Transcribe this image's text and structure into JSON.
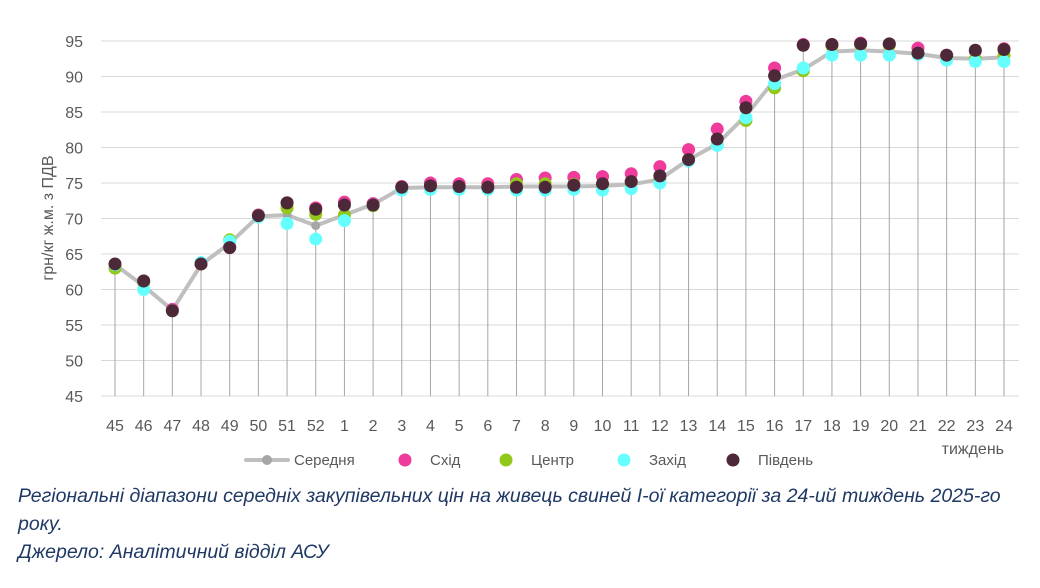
{
  "chart_data": {
    "type": "line",
    "ylabel": "грн/кг ж.м. з ПДВ",
    "xlabel": "тиждень",
    "ylim": [
      45,
      95
    ],
    "yticks": [
      45,
      50,
      55,
      60,
      65,
      70,
      75,
      80,
      85,
      90,
      95
    ],
    "grid": true,
    "legend": "bottom",
    "categories": [
      "45",
      "46",
      "47",
      "48",
      "49",
      "50",
      "51",
      "52",
      "1",
      "2",
      "3",
      "4",
      "5",
      "6",
      "7",
      "8",
      "9",
      "10",
      "11",
      "12",
      "13",
      "14",
      "15",
      "16",
      "17",
      "18",
      "19",
      "20",
      "21",
      "22",
      "23",
      "24"
    ],
    "series": [
      {
        "name": "Середня",
        "color": "#bfbfbf",
        "marker": "line",
        "values": [
          63.5,
          60.5,
          57.1,
          63.5,
          66.5,
          70.3,
          70.5,
          69.0,
          70.5,
          72.0,
          74.3,
          74.4,
          74.4,
          74.4,
          74.5,
          74.5,
          74.5,
          74.6,
          74.8,
          75.5,
          78.3,
          80.5,
          84.5,
          89.5,
          91.0,
          93.5,
          93.7,
          93.5,
          93.2,
          92.6,
          92.5,
          92.7
        ]
      },
      {
        "name": "Схід",
        "color": "#ef3b9c",
        "marker": "dot",
        "values": [
          63.5,
          61.2,
          57.2,
          63.6,
          66.0,
          70.5,
          72.2,
          71.5,
          72.3,
          72.1,
          74.5,
          75.0,
          74.9,
          74.9,
          75.5,
          75.7,
          75.8,
          75.9,
          76.3,
          77.3,
          79.7,
          82.6,
          86.5,
          91.2,
          94.5,
          94.5,
          94.7,
          94.5,
          94.0,
          93.0,
          93.6,
          93.9
        ]
      },
      {
        "name": "Центр",
        "color": "#92c81a",
        "marker": "dot",
        "values": [
          63.0,
          61.0,
          57.0,
          63.6,
          67.0,
          70.4,
          71.5,
          70.6,
          70.5,
          71.8,
          74.2,
          74.5,
          74.4,
          74.4,
          74.9,
          74.9,
          74.8,
          74.7,
          75.0,
          75.5,
          78.2,
          80.4,
          83.8,
          88.4,
          90.8,
          94.3,
          94.5,
          94.4,
          93.2,
          92.8,
          92.5,
          93.0
        ]
      },
      {
        "name": "Захід",
        "color": "#66ffff",
        "marker": "dot",
        "values": [
          63.5,
          60.0,
          57.0,
          63.8,
          66.8,
          70.2,
          69.3,
          67.1,
          69.7,
          71.9,
          74.0,
          74.1,
          74.1,
          74.1,
          74.0,
          74.0,
          74.1,
          74.0,
          74.2,
          75.0,
          78.1,
          80.3,
          84.2,
          89.0,
          91.2,
          93.0,
          93.0,
          93.0,
          93.1,
          92.3,
          92.1,
          92.1
        ]
      },
      {
        "name": "Південь",
        "color": "#4d2838",
        "marker": "dot",
        "values": [
          63.6,
          61.2,
          57.0,
          63.6,
          65.9,
          70.4,
          72.2,
          71.3,
          71.9,
          71.9,
          74.4,
          74.6,
          74.5,
          74.4,
          74.4,
          74.4,
          74.7,
          74.9,
          75.2,
          76.0,
          78.3,
          81.2,
          85.6,
          90.1,
          94.4,
          94.5,
          94.6,
          94.6,
          93.3,
          93.0,
          93.7,
          93.8
        ]
      }
    ]
  },
  "caption": {
    "line1": "Регіональні діапазони середніх закупівельних цін на живець свиней I-ої категорії за 24-ий тиждень 2025-го року.",
    "line2": "Джерело: Аналітичний відділ АСУ"
  }
}
